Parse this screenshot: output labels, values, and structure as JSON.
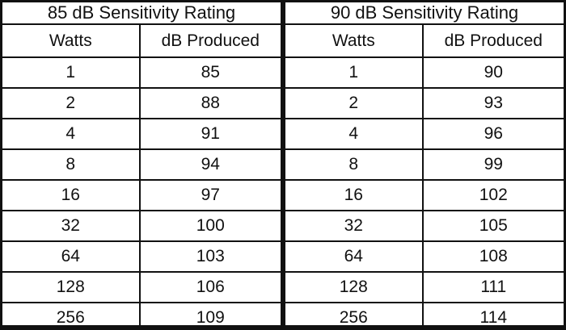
{
  "tables": [
    {
      "title": "85 dB Sensitivity Rating",
      "headers": [
        "Watts",
        "dB Produced"
      ],
      "rows": [
        [
          "1",
          "85"
        ],
        [
          "2",
          "88"
        ],
        [
          "4",
          "91"
        ],
        [
          "8",
          "94"
        ],
        [
          "16",
          "97"
        ],
        [
          "32",
          "100"
        ],
        [
          "64",
          "103"
        ],
        [
          "128",
          "106"
        ],
        [
          "256",
          "109"
        ]
      ]
    },
    {
      "title": "90 dB Sensitivity Rating",
      "headers": [
        "Watts",
        "dB Produced"
      ],
      "rows": [
        [
          "1",
          "90"
        ],
        [
          "2",
          "93"
        ],
        [
          "4",
          "96"
        ],
        [
          "8",
          "99"
        ],
        [
          "16",
          "102"
        ],
        [
          "32",
          "105"
        ],
        [
          "64",
          "108"
        ],
        [
          "128",
          "111"
        ],
        [
          "256",
          "114"
        ]
      ]
    }
  ]
}
